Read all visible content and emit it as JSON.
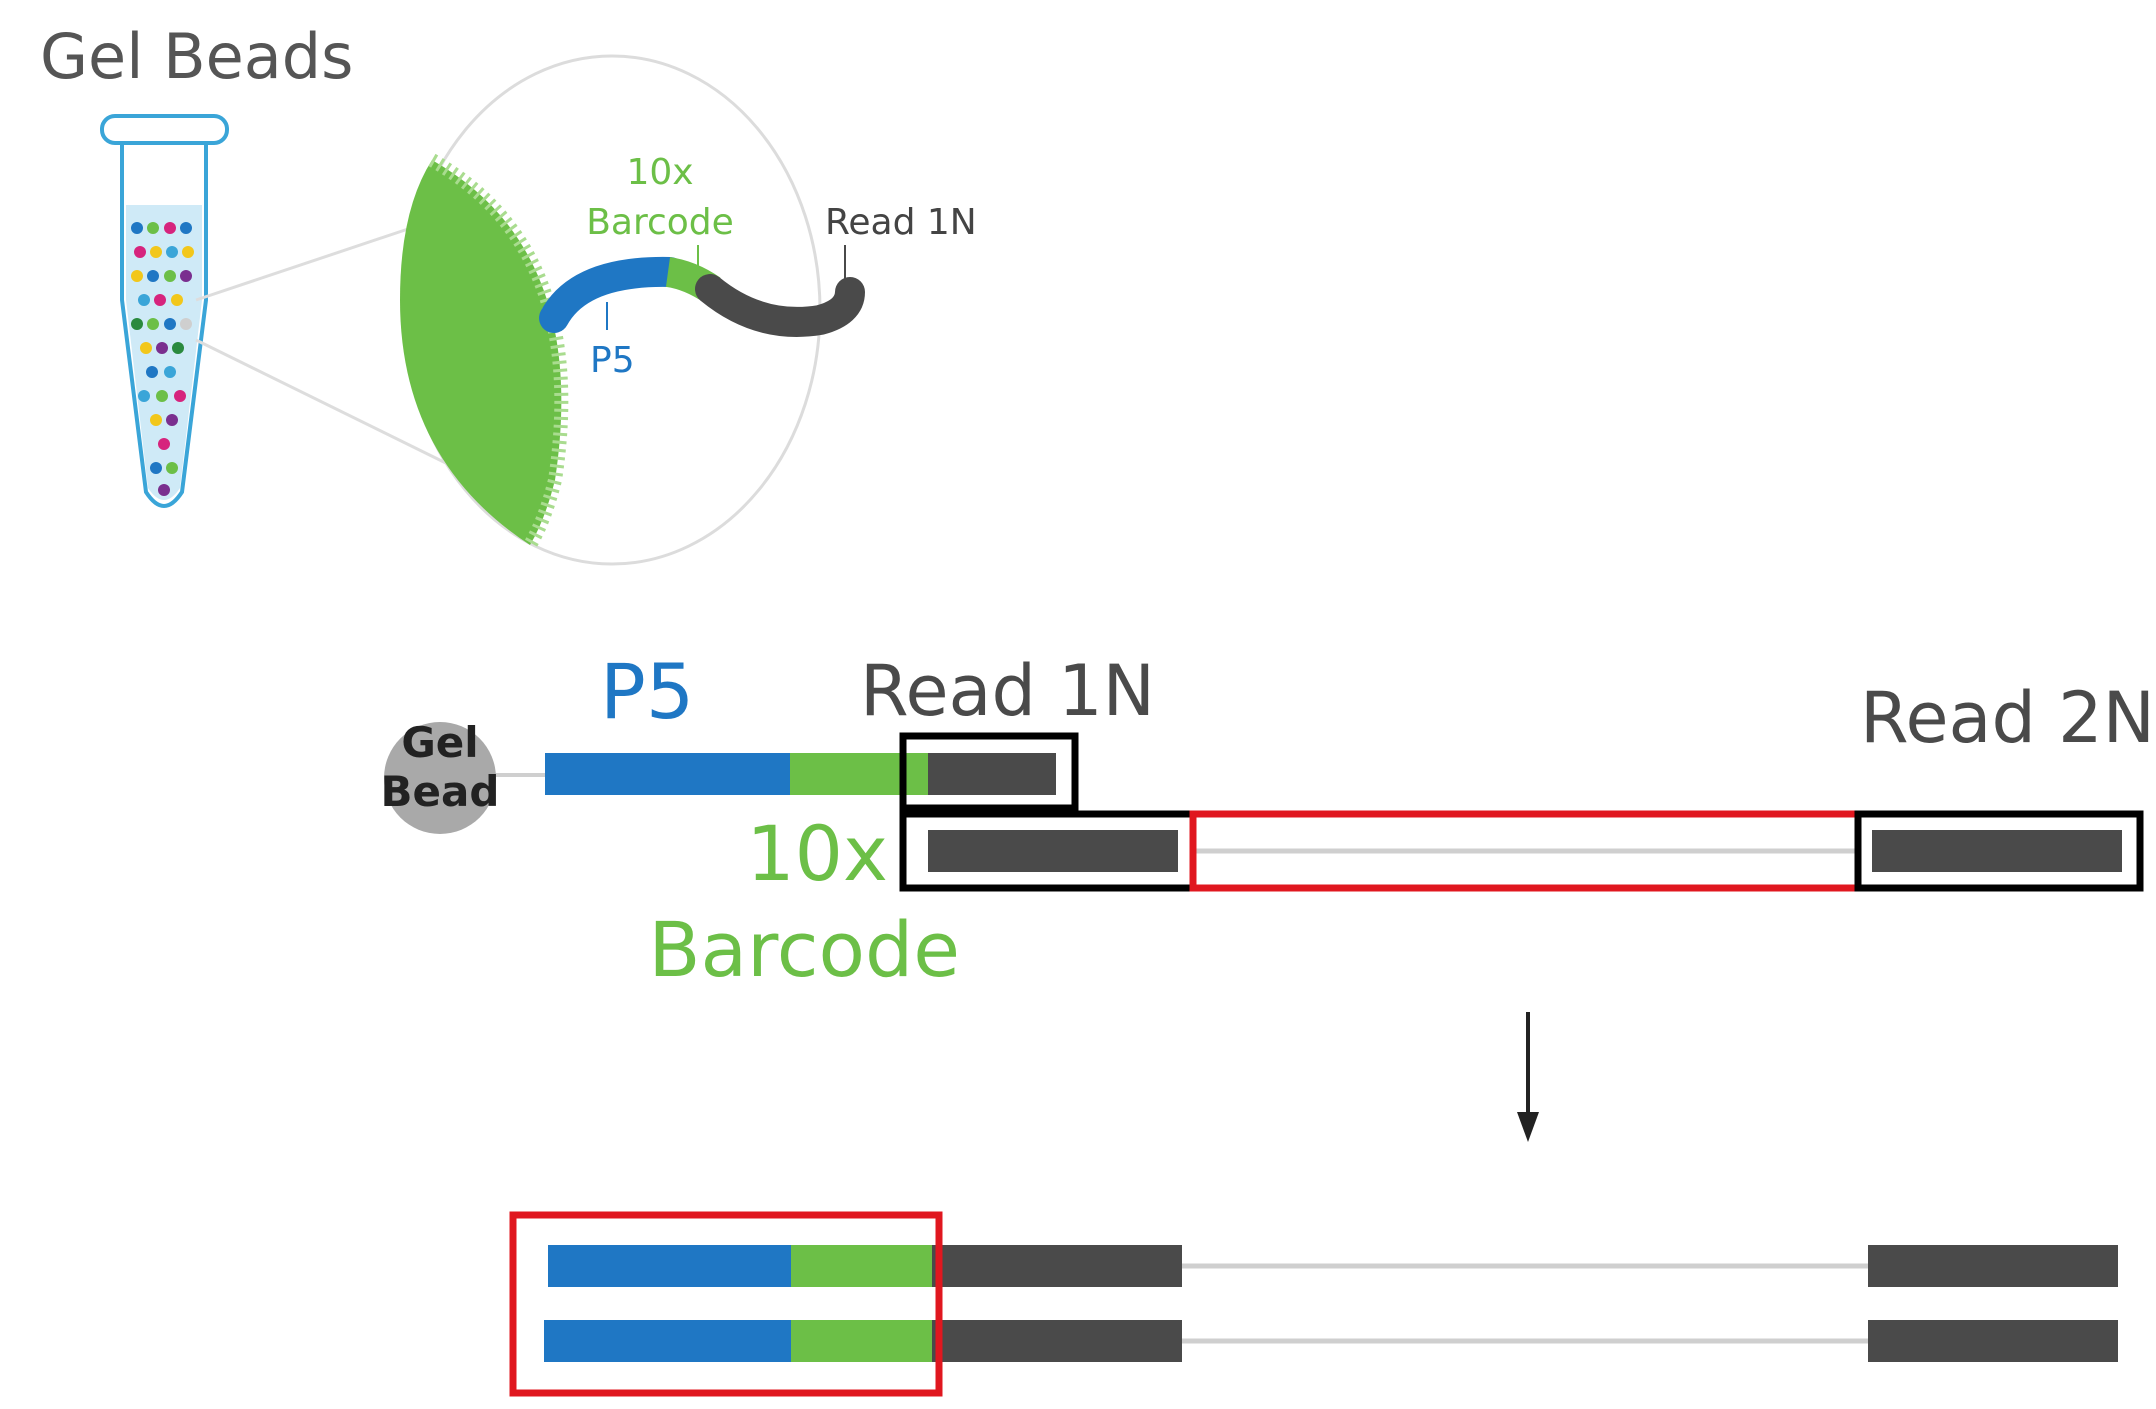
{
  "title": "Gel Beads",
  "zoom": {
    "barcode_line1": "10x",
    "barcode_line2": "Barcode",
    "read1": "Read 1N",
    "p5": "P5"
  },
  "construct": {
    "p5": "P5",
    "read1": "Read 1N",
    "read2": "Read 2N",
    "bead_line1": "Gel",
    "bead_line2": "Bead",
    "barcode_line1": "10x",
    "barcode_line2": "Barcode"
  },
  "colors": {
    "p5": "#1f77c4",
    "barcode": "#6cbf47",
    "read": "#4a4a4a",
    "highlight_red": "#e0171f",
    "highlight_black": "#000000",
    "bead_grey": "#a9a9a9",
    "bead_text": "#222222",
    "label_grey": "#555555",
    "tube_outline": "#3aa5d8",
    "tube_fill": "#cfeaf7"
  }
}
